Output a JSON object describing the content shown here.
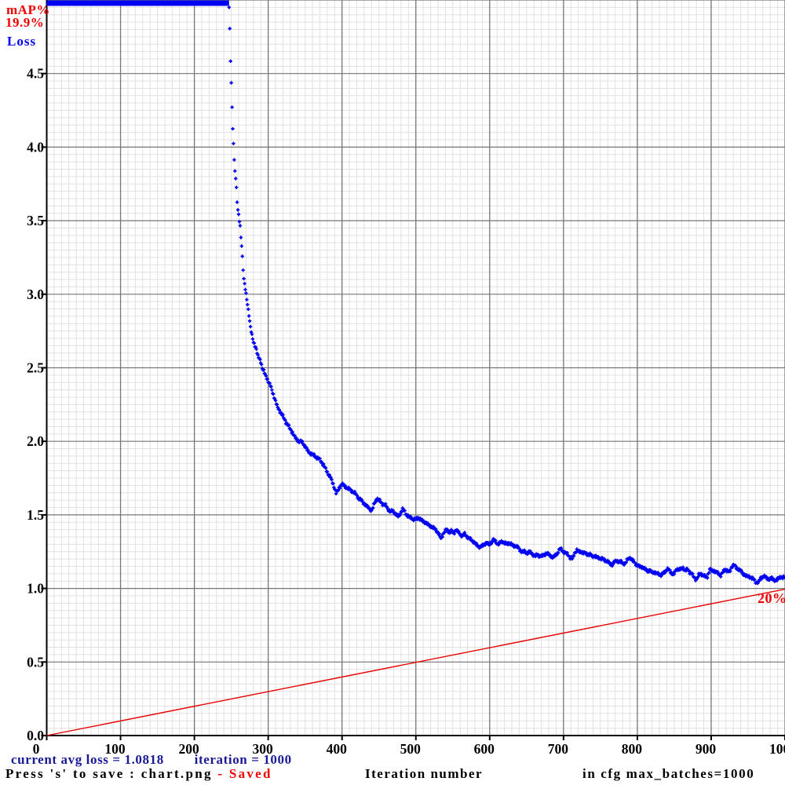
{
  "header": {
    "map_label": "mAP%",
    "map_value": "19.9%",
    "loss_label": "Loss"
  },
  "footer": {
    "line1": "current avg loss = 1.0818        iteration = 1000",
    "line2_black": "Press 's' to save : chart.png ",
    "line2_red": "- Saved",
    "xlabel": "Iteration number",
    "cfg_note": "in cfg max_batches=1000"
  },
  "colors": {
    "loss_blue": "#0000f2",
    "map_red": "#e60000",
    "red_text": "#f20000",
    "navy_text": "#1a1a99",
    "black": "#000000",
    "grid_minor": "#e0e0e0",
    "grid_major": "#757575",
    "background": "#ffffff"
  },
  "chart_data": {
    "type": "scatter",
    "title": "",
    "xlabel": "Iteration number",
    "ylabel": "Loss",
    "xlim": [
      0,
      1000
    ],
    "ylim": [
      0,
      5
    ],
    "x_tick_step": 100,
    "y_tick_step": 0.5,
    "x_minor_step": 10,
    "y_minor_step": 0.05,
    "grid": true,
    "x_tick_labels": [
      "0",
      "100",
      "200",
      "300",
      "400",
      "500",
      "600",
      "700",
      "800",
      "900",
      "1000"
    ],
    "y_tick_labels": [
      "0.0",
      "0.5",
      "1.0",
      "1.5",
      "2.0",
      "2.5",
      "3.0",
      "3.5",
      "4.0",
      "4.5"
    ],
    "annotations": {
      "map_current_percent": 19.9,
      "avg_loss": 1.0818,
      "iteration": 1000,
      "max_batches": 1000
    },
    "series": [
      {
        "name": "Loss",
        "marker": "plus",
        "color": "#0000f2",
        "clipped_above_ylim": {
          "iter_from": 0,
          "iter_to": 247,
          "note": "loss > 5.0 drawn as solid bar at plot top"
        },
        "points": [
          [
            247,
            4.94
          ],
          [
            248,
            4.81
          ],
          [
            249,
            4.58
          ],
          [
            250,
            4.44
          ],
          [
            251,
            4.28
          ],
          [
            252,
            4.12
          ],
          [
            253,
            4.03
          ],
          [
            254,
            3.91
          ],
          [
            255,
            3.83
          ],
          [
            256,
            3.79
          ],
          [
            257,
            3.72
          ],
          [
            258,
            3.63
          ],
          [
            259,
            3.58
          ],
          [
            260,
            3.54
          ],
          [
            262,
            3.46
          ],
          [
            263,
            3.38
          ],
          [
            264,
            3.33
          ],
          [
            265,
            3.25
          ],
          [
            266,
            3.17
          ],
          [
            267,
            3.11
          ],
          [
            268,
            3.07
          ],
          [
            269,
            3.04
          ],
          [
            271,
            2.96
          ],
          [
            272,
            2.93
          ],
          [
            273,
            2.89
          ],
          [
            274,
            2.86
          ],
          [
            276,
            2.78
          ],
          [
            278,
            2.72
          ],
          [
            280,
            2.67
          ],
          [
            282,
            2.65
          ],
          [
            284,
            2.63
          ],
          [
            286,
            2.58
          ],
          [
            288,
            2.56
          ],
          [
            290,
            2.54
          ],
          [
            292,
            2.5
          ],
          [
            294,
            2.48
          ],
          [
            296,
            2.45
          ],
          [
            298,
            2.43
          ],
          [
            300,
            2.41
          ],
          [
            303,
            2.38
          ],
          [
            306,
            2.33
          ],
          [
            309,
            2.29
          ],
          [
            312,
            2.24
          ],
          [
            315,
            2.21
          ],
          [
            318,
            2.19
          ],
          [
            321,
            2.16
          ],
          [
            324,
            2.13
          ],
          [
            327,
            2.11
          ],
          [
            330,
            2.08
          ],
          [
            333,
            2.06
          ],
          [
            336,
            2.03
          ],
          [
            339,
            2.01
          ],
          [
            342,
            2.0
          ],
          [
            345,
            2.0
          ],
          [
            348,
            1.98
          ],
          [
            351,
            1.96
          ],
          [
            354,
            1.93
          ],
          [
            357,
            1.92
          ],
          [
            360,
            1.91
          ],
          [
            363,
            1.9
          ],
          [
            366,
            1.89
          ],
          [
            369,
            1.88
          ],
          [
            372,
            1.86
          ],
          [
            375,
            1.84
          ],
          [
            378,
            1.81
          ],
          [
            381,
            1.78
          ],
          [
            384,
            1.76
          ],
          [
            387,
            1.72
          ],
          [
            390,
            1.68
          ],
          [
            392,
            1.65
          ],
          [
            394,
            1.66
          ],
          [
            396,
            1.68
          ],
          [
            398,
            1.7
          ],
          [
            400,
            1.71
          ],
          [
            402,
            1.7
          ],
          [
            405,
            1.69
          ],
          [
            408,
            1.68
          ],
          [
            411,
            1.67
          ],
          [
            414,
            1.66
          ],
          [
            417,
            1.65
          ],
          [
            420,
            1.63
          ],
          [
            423,
            1.61
          ],
          [
            426,
            1.6
          ],
          [
            429,
            1.58
          ],
          [
            432,
            1.57
          ],
          [
            435,
            1.55
          ],
          [
            438,
            1.54
          ],
          [
            440,
            1.53
          ],
          [
            442,
            1.55
          ],
          [
            444,
            1.58
          ],
          [
            446,
            1.6
          ],
          [
            448,
            1.61
          ],
          [
            450,
            1.6
          ],
          [
            452,
            1.59
          ],
          [
            454,
            1.58
          ],
          [
            456,
            1.57
          ],
          [
            458,
            1.57
          ],
          [
            460,
            1.56
          ],
          [
            462,
            1.54
          ],
          [
            464,
            1.53
          ],
          [
            466,
            1.52
          ],
          [
            468,
            1.53
          ],
          [
            470,
            1.52
          ],
          [
            472,
            1.51
          ],
          [
            474,
            1.5
          ],
          [
            476,
            1.49
          ],
          [
            478,
            1.5
          ],
          [
            480,
            1.52
          ],
          [
            482,
            1.54
          ],
          [
            484,
            1.53
          ],
          [
            486,
            1.51
          ],
          [
            488,
            1.5
          ],
          [
            490,
            1.49
          ],
          [
            492,
            1.48
          ],
          [
            494,
            1.48
          ],
          [
            496,
            1.47
          ],
          [
            498,
            1.47
          ],
          [
            500,
            1.47
          ],
          [
            503,
            1.48
          ],
          [
            506,
            1.47
          ],
          [
            509,
            1.46
          ],
          [
            512,
            1.45
          ],
          [
            515,
            1.44
          ],
          [
            518,
            1.43
          ],
          [
            521,
            1.42
          ],
          [
            524,
            1.41
          ],
          [
            527,
            1.4
          ],
          [
            530,
            1.38
          ],
          [
            532,
            1.36
          ],
          [
            534,
            1.34
          ],
          [
            536,
            1.36
          ],
          [
            538,
            1.38
          ],
          [
            540,
            1.39
          ],
          [
            542,
            1.4
          ],
          [
            544,
            1.39
          ],
          [
            546,
            1.38
          ],
          [
            548,
            1.39
          ],
          [
            550,
            1.38
          ],
          [
            552,
            1.38
          ],
          [
            554,
            1.4
          ],
          [
            556,
            1.39
          ],
          [
            558,
            1.38
          ],
          [
            560,
            1.37
          ],
          [
            562,
            1.36
          ],
          [
            564,
            1.36
          ],
          [
            566,
            1.37
          ],
          [
            568,
            1.36
          ],
          [
            570,
            1.35
          ],
          [
            572,
            1.34
          ],
          [
            575,
            1.33
          ],
          [
            578,
            1.32
          ],
          [
            581,
            1.3
          ],
          [
            584,
            1.29
          ],
          [
            587,
            1.28
          ],
          [
            590,
            1.29
          ],
          [
            593,
            1.3
          ],
          [
            596,
            1.31
          ],
          [
            599,
            1.3
          ],
          [
            602,
            1.31
          ],
          [
            605,
            1.33
          ],
          [
            608,
            1.32
          ],
          [
            611,
            1.3
          ],
          [
            614,
            1.31
          ],
          [
            617,
            1.32
          ],
          [
            620,
            1.31
          ],
          [
            623,
            1.3
          ],
          [
            626,
            1.31
          ],
          [
            629,
            1.3
          ],
          [
            632,
            1.29
          ],
          [
            635,
            1.29
          ],
          [
            638,
            1.28
          ],
          [
            641,
            1.26
          ],
          [
            644,
            1.25
          ],
          [
            647,
            1.25
          ],
          [
            650,
            1.24
          ],
          [
            653,
            1.25
          ],
          [
            656,
            1.24
          ],
          [
            659,
            1.23
          ],
          [
            662,
            1.22
          ],
          [
            665,
            1.23
          ],
          [
            668,
            1.22
          ],
          [
            671,
            1.22
          ],
          [
            674,
            1.23
          ],
          [
            677,
            1.24
          ],
          [
            680,
            1.23
          ],
          [
            683,
            1.22
          ],
          [
            686,
            1.21
          ],
          [
            688,
            1.22
          ],
          [
            690,
            1.23
          ],
          [
            692,
            1.24
          ],
          [
            694,
            1.26
          ],
          [
            696,
            1.27
          ],
          [
            698,
            1.26
          ],
          [
            700,
            1.25
          ],
          [
            703,
            1.24
          ],
          [
            706,
            1.23
          ],
          [
            709,
            1.21
          ],
          [
            712,
            1.2
          ],
          [
            715,
            1.24
          ],
          [
            718,
            1.26
          ],
          [
            721,
            1.25
          ],
          [
            724,
            1.25
          ],
          [
            727,
            1.24
          ],
          [
            730,
            1.24
          ],
          [
            733,
            1.23
          ],
          [
            736,
            1.23
          ],
          [
            739,
            1.22
          ],
          [
            742,
            1.22
          ],
          [
            745,
            1.21
          ],
          [
            748,
            1.21
          ],
          [
            751,
            1.2
          ],
          [
            754,
            1.2
          ],
          [
            757,
            1.19
          ],
          [
            760,
            1.18
          ],
          [
            763,
            1.17
          ],
          [
            766,
            1.16
          ],
          [
            769,
            1.18
          ],
          [
            772,
            1.19
          ],
          [
            775,
            1.18
          ],
          [
            778,
            1.18
          ],
          [
            781,
            1.17
          ],
          [
            784,
            1.17
          ],
          [
            787,
            1.2
          ],
          [
            790,
            1.21
          ],
          [
            793,
            1.19
          ],
          [
            796,
            1.18
          ],
          [
            799,
            1.16
          ],
          [
            802,
            1.15
          ],
          [
            805,
            1.15
          ],
          [
            808,
            1.14
          ],
          [
            811,
            1.13
          ],
          [
            814,
            1.12
          ],
          [
            817,
            1.12
          ],
          [
            820,
            1.11
          ],
          [
            823,
            1.11
          ],
          [
            826,
            1.1
          ],
          [
            829,
            1.1
          ],
          [
            832,
            1.09
          ],
          [
            835,
            1.1
          ],
          [
            838,
            1.12
          ],
          [
            841,
            1.13
          ],
          [
            844,
            1.12
          ],
          [
            847,
            1.1
          ],
          [
            850,
            1.1
          ],
          [
            853,
            1.13
          ],
          [
            856,
            1.13
          ],
          [
            859,
            1.13
          ],
          [
            862,
            1.14
          ],
          [
            865,
            1.12
          ],
          [
            868,
            1.13
          ],
          [
            871,
            1.11
          ],
          [
            874,
            1.1
          ],
          [
            876,
            1.08
          ],
          [
            878,
            1.07
          ],
          [
            880,
            1.06
          ],
          [
            883,
            1.09
          ],
          [
            886,
            1.1
          ],
          [
            889,
            1.09
          ],
          [
            892,
            1.08
          ],
          [
            895,
            1.08
          ],
          [
            898,
            1.13
          ],
          [
            901,
            1.12
          ],
          [
            904,
            1.12
          ],
          [
            907,
            1.11
          ],
          [
            910,
            1.1
          ],
          [
            913,
            1.09
          ],
          [
            916,
            1.11
          ],
          [
            919,
            1.13
          ],
          [
            922,
            1.12
          ],
          [
            925,
            1.11
          ],
          [
            928,
            1.15
          ],
          [
            931,
            1.16
          ],
          [
            934,
            1.14
          ],
          [
            937,
            1.13
          ],
          [
            940,
            1.12
          ],
          [
            943,
            1.1
          ],
          [
            946,
            1.09
          ],
          [
            949,
            1.08
          ],
          [
            952,
            1.08
          ],
          [
            955,
            1.07
          ],
          [
            958,
            1.06
          ],
          [
            961,
            1.04
          ],
          [
            964,
            1.04
          ],
          [
            967,
            1.07
          ],
          [
            970,
            1.08
          ],
          [
            973,
            1.08
          ],
          [
            976,
            1.07
          ],
          [
            979,
            1.06
          ],
          [
            982,
            1.07
          ],
          [
            985,
            1.06
          ],
          [
            988,
            1.05
          ],
          [
            991,
            1.07
          ],
          [
            994,
            1.08
          ],
          [
            997,
            1.07
          ],
          [
            1000,
            1.08
          ]
        ]
      },
      {
        "name": "mAP%",
        "marker": "line",
        "color": "#e60000",
        "scale": "percent 0-100 mapped to full plot height",
        "points": [
          [
            0,
            0.0
          ],
          [
            1000,
            19.9
          ]
        ],
        "end_label": "20%"
      }
    ]
  }
}
